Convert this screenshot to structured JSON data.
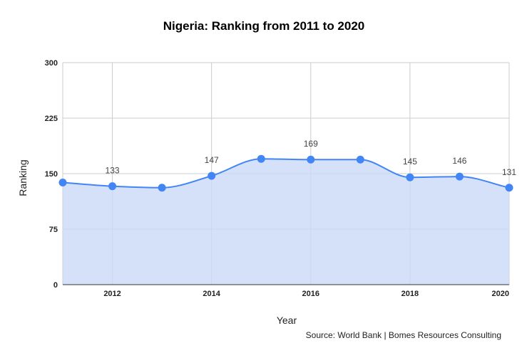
{
  "chart_data": {
    "type": "area",
    "title": "Nigeria: Ranking from 2011 to 2020",
    "xlabel": "Year",
    "ylabel": "Ranking",
    "source": "Source: World Bank | Bomes Resources Consulting",
    "x": [
      2011,
      2012,
      2013,
      2014,
      2015,
      2016,
      2017,
      2018,
      2019,
      2020
    ],
    "series": [
      {
        "values": [
          138,
          133,
          131,
          147,
          170,
          169,
          169,
          145,
          146,
          131
        ]
      }
    ],
    "data_labels": [
      {
        "x": 2012,
        "text": "133"
      },
      {
        "x": 2014,
        "text": "147"
      },
      {
        "x": 2016,
        "text": "169"
      },
      {
        "x": 2018,
        "text": "145"
      },
      {
        "x": 2019,
        "text": "146"
      },
      {
        "x": 2020,
        "text": "131"
      }
    ],
    "xticks": [
      "2012",
      "2014",
      "2016",
      "2018",
      "2020"
    ],
    "yticks": [
      "0",
      "75",
      "150",
      "225",
      "300"
    ],
    "xlim": [
      2011,
      2020
    ],
    "ylim": [
      0,
      300
    ],
    "grid": true,
    "colors": {
      "line": "#4285f4",
      "fill": "#c9daf8",
      "grid": "#cccccc"
    }
  }
}
